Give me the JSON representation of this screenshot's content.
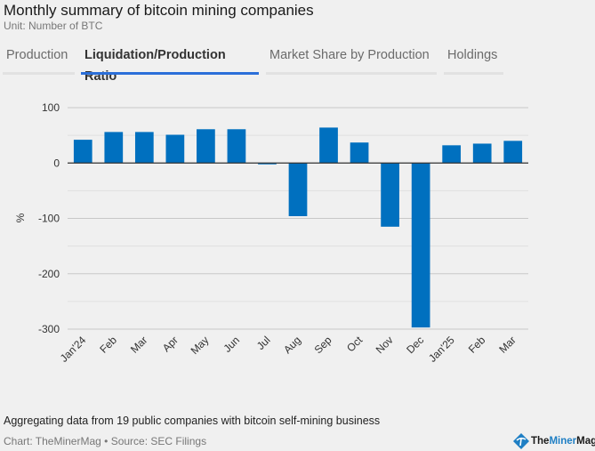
{
  "header": {
    "title": "Monthly summary of bitcoin mining companies",
    "subtitle": "Unit: Number of BTC"
  },
  "tabs": [
    {
      "label": "Production",
      "active": false
    },
    {
      "label": "Liquidation/Production Ratio",
      "active": true
    },
    {
      "label": "Market Share by Production",
      "active": false
    },
    {
      "label": "Holdings",
      "active": false
    }
  ],
  "colors": {
    "bar": "#0070bf",
    "accent_tab": "#2b6fd9",
    "background": "#f0f0f0"
  },
  "chart_data": {
    "type": "bar",
    "title": "",
    "xlabel": "",
    "ylabel": "%",
    "categories": [
      "Jan'24",
      "Feb",
      "Mar",
      "Apr",
      "May",
      "Jun",
      "Jul",
      "Aug",
      "Sep",
      "Oct",
      "Nov",
      "Dec",
      "Jan'25",
      "Feb",
      "Mar"
    ],
    "values": [
      42,
      56,
      56,
      51,
      61,
      61,
      -2,
      -96,
      64,
      37,
      -115,
      -297,
      32,
      35,
      40
    ],
    "ylim": [
      -300,
      100
    ],
    "yticks": [
      100,
      0,
      -100,
      -200,
      -300
    ],
    "ytick_labels": [
      "100",
      "0",
      "-100",
      "-200",
      "-300"
    ],
    "minor_gridlines": [
      50,
      -50,
      -150,
      -250
    ],
    "grid": true,
    "legend": "none"
  },
  "footer": {
    "note": "Aggregating data from 19 public companies with bitcoin self-mining business",
    "credit": "Chart: TheMinerMag • Source: SEC Filings",
    "logo": {
      "the": "The",
      "miner": "Miner",
      "mag": "Mag"
    }
  }
}
